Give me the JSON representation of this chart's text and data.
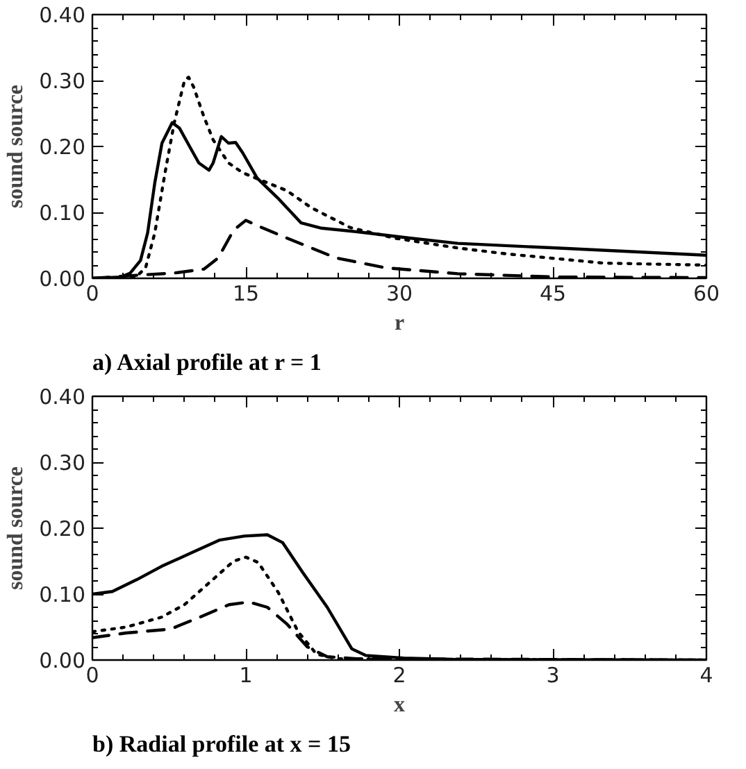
{
  "chart_data": [
    {
      "type": "line",
      "title": "a) Axial profile at r = 1",
      "xlabel": "r",
      "ylabel": "sound source",
      "xlim": [
        0,
        60
      ],
      "ylim": [
        0,
        0.4
      ],
      "xticks": [
        0,
        15,
        30,
        45,
        60
      ],
      "yticks": [
        {
          "value": 0,
          "label": "0.00"
        },
        {
          "value": 0.1,
          "label": "0.10"
        },
        {
          "value": 0.2,
          "label": "0.20"
        },
        {
          "value": 0.3,
          "label": "0.30"
        },
        {
          "value": 0.4,
          "label": "0.40"
        }
      ],
      "grid": false,
      "marker": "none",
      "series": [
        {
          "color": "#000000",
          "line_style": "solid",
          "x": [
            0,
            2.8,
            3.7,
            4.7,
            5.4,
            6.1,
            6.8,
            7.8,
            8.5,
            9.5,
            10.4,
            11.4,
            11.8,
            12.6,
            13.3,
            14.0,
            14.7,
            16.1,
            18.1,
            20.4,
            22.4,
            26.2,
            31,
            35.7,
            45.3,
            60
          ],
          "values": [
            0,
            0.002,
            0.008,
            0.027,
            0.069,
            0.145,
            0.205,
            0.236,
            0.228,
            0.2,
            0.175,
            0.164,
            0.175,
            0.215,
            0.205,
            0.206,
            0.19,
            0.152,
            0.122,
            0.084,
            0.076,
            0.07,
            0.061,
            0.053,
            0.046,
            0.035
          ]
        },
        {
          "color": "#000000",
          "line_style": "dotted",
          "x": [
            0,
            4.2,
            5.2,
            6.1,
            7.1,
            8,
            9,
            9.4,
            9.9,
            10.9,
            11.8,
            13.3,
            14.7,
            16.6,
            19,
            21.4,
            25.2,
            29.5,
            35.7,
            40.5,
            50,
            60
          ],
          "values": [
            0,
            0.001,
            0.016,
            0.069,
            0.16,
            0.236,
            0.3,
            0.305,
            0.29,
            0.245,
            0.21,
            0.175,
            0.16,
            0.148,
            0.133,
            0.107,
            0.077,
            0.061,
            0.046,
            0.037,
            0.023,
            0.02
          ]
        },
        {
          "color": "#000000",
          "line_style": "dashed",
          "x": [
            0,
            4.7,
            8,
            10.9,
            12.3,
            13.8,
            15,
            16.1,
            19,
            23.8,
            28.6,
            35.7,
            45.3,
            60
          ],
          "values": [
            0,
            0.005,
            0.008,
            0.014,
            0.031,
            0.073,
            0.088,
            0.08,
            0.061,
            0.031,
            0.016,
            0.007,
            0.002,
            0.001
          ]
        }
      ]
    },
    {
      "type": "line",
      "title": "b) Radial profile at x = 15",
      "xlabel": "x",
      "ylabel": "sound source",
      "xlim": [
        0,
        4
      ],
      "ylim": [
        0,
        0.4
      ],
      "xticks": [
        0,
        1,
        2,
        3,
        4
      ],
      "yticks": [
        {
          "value": 0,
          "label": "0.00"
        },
        {
          "value": 0.1,
          "label": "0.10"
        },
        {
          "value": 0.2,
          "label": "0.20"
        },
        {
          "value": 0.3,
          "label": "0.30"
        },
        {
          "value": 0.4,
          "label": "0.40"
        }
      ],
      "grid": false,
      "marker": "none",
      "series": [
        {
          "color": "#000000",
          "line_style": "solid",
          "x": [
            0,
            0.13,
            0.29,
            0.45,
            0.64,
            0.83,
            0.99,
            1.14,
            1.24,
            1.37,
            1.53,
            1.69,
            1.78,
            2.03,
            2.35,
            4
          ],
          "values": [
            0.1,
            0.104,
            0.122,
            0.142,
            0.162,
            0.182,
            0.188,
            0.19,
            0.178,
            0.133,
            0.08,
            0.017,
            0.007,
            0.003,
            0.001,
            0
          ]
        },
        {
          "color": "#000000",
          "line_style": "dotted",
          "x": [
            0,
            0.22,
            0.45,
            0.6,
            0.76,
            0.92,
            1.0,
            1.08,
            1.21,
            1.34,
            1.46,
            1.59,
            2.03,
            4
          ],
          "values": [
            0.043,
            0.05,
            0.065,
            0.084,
            0.117,
            0.15,
            0.156,
            0.148,
            0.103,
            0.043,
            0.009,
            0.002,
            0.001,
            0
          ]
        },
        {
          "color": "#000000",
          "line_style": "dashed",
          "x": [
            0,
            0.22,
            0.51,
            0.7,
            0.89,
            1.02,
            1.14,
            1.27,
            1.4,
            1.53,
            1.72,
            4
          ],
          "values": [
            0.034,
            0.041,
            0.047,
            0.065,
            0.084,
            0.088,
            0.08,
            0.054,
            0.02,
            0.005,
            0.002,
            0
          ]
        }
      ]
    }
  ]
}
